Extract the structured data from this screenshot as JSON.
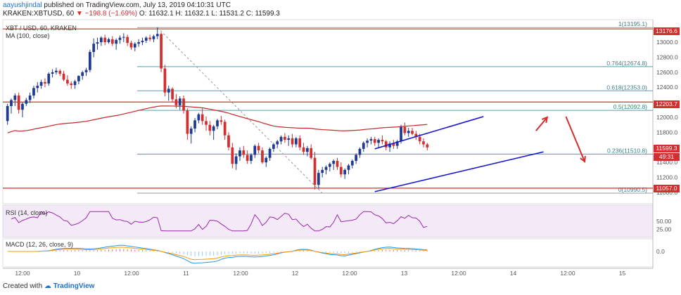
{
  "header": {
    "author": "aayushjindal",
    "published": "published on TradingView.com, July 13, 2019 04:10:31 UTC",
    "symbol": "KRAKEN:XBTUSD, 60",
    "change": "▼ −198.8 (−1.69%)",
    "ohlc": "O: 11632.1  H: 11632.1  L: 11531.2  C: 11599.3"
  },
  "legend": {
    "pair": "XBT / USD, 60, KRAKEN",
    "ma": "MA (100, close)",
    "rsi": "RSI (14, close)",
    "macd": "MACD (12, 26, close, 9)"
  },
  "footer": {
    "created": "Created with",
    "brand": "TradingView"
  },
  "colors": {
    "up": "#1f3a93",
    "down": "#d32f2f",
    "ma": "#c62828",
    "hline": "#d32f2f",
    "channel": "#1a1acc",
    "fib": "#4aa3a8",
    "rsi": "#9c27b0"
  },
  "price_axis_labels": [
    "13000.0",
    "12800.0",
    "12600.0",
    "12400.0",
    "12000.0",
    "11800.0",
    "11400.0",
    "11200.0",
    "11000.0"
  ],
  "rsi_axis_labels": [
    "50.00",
    "25.00"
  ],
  "macd_axis_labels": [
    "0.0"
  ],
  "time_axis_labels": [
    "12:00",
    "10",
    "12:00",
    "11",
    "12:00",
    "12",
    "12:00",
    "13",
    "12:00",
    "14",
    "12:00",
    "15"
  ],
  "badges": {
    "top": "13176.6",
    "mid": "12203.7",
    "last": "11599.3",
    "countdown": "49:31",
    "low": "11057.0"
  },
  "chart_data": {
    "type": "candlestick",
    "title": "XBT / USD, 60, KRAKEN",
    "ylim": [
      10850,
      13300
    ],
    "horizontal_levels": [
      13176.6,
      12203.7,
      11057.0
    ],
    "fibonacci": [
      {
        "label": "1(13195.1)",
        "value": 13195.1
      },
      {
        "label": "0.764(12674.8)",
        "value": 12674.8
      },
      {
        "label": "0.618(12353.0)",
        "value": 12353.0
      },
      {
        "label": "0.5(12092.8)",
        "value": 12092.8
      },
      {
        "label": "0.236(11510.8)",
        "value": 11510.8
      },
      {
        "label": "0(10990.5)",
        "value": 10990.5
      }
    ],
    "channel": {
      "upper": [
        {
          "t": 98,
          "price": 11580
        },
        {
          "t": 127,
          "price": 12010
        }
      ],
      "lower": [
        {
          "t": 98,
          "price": 11010
        },
        {
          "t": 143,
          "price": 11540
        }
      ]
    },
    "arrows": [
      {
        "from": {
          "t": 141,
          "price": 11820
        },
        "to": {
          "t": 144,
          "price": 12000
        }
      },
      {
        "from": {
          "t": 149,
          "price": 12010
        },
        "to": {
          "t": 154,
          "price": 11410
        }
      }
    ],
    "candles": [
      [
        11950,
        12180,
        11900,
        12150
      ],
      [
        12150,
        12250,
        12050,
        12230
      ],
      [
        12230,
        12320,
        12150,
        12290
      ],
      [
        12290,
        12330,
        12050,
        12100
      ],
      [
        12100,
        12200,
        12000,
        12180
      ],
      [
        12180,
        12260,
        12150,
        12230
      ],
      [
        12230,
        12330,
        12190,
        12290
      ],
      [
        12290,
        12420,
        12250,
        12390
      ],
      [
        12390,
        12470,
        12330,
        12420
      ],
      [
        12420,
        12500,
        12380,
        12470
      ],
      [
        12470,
        12520,
        12400,
        12450
      ],
      [
        12450,
        12600,
        12420,
        12580
      ],
      [
        12580,
        12640,
        12530,
        12600
      ],
      [
        12600,
        12660,
        12570,
        12620
      ],
      [
        12620,
        12640,
        12550,
        12580
      ],
      [
        12580,
        12620,
        12480,
        12500
      ],
      [
        12500,
        12560,
        12420,
        12450
      ],
      [
        12450,
        12480,
        12380,
        12430
      ],
      [
        12430,
        12500,
        12380,
        12480
      ],
      [
        12480,
        12560,
        12440,
        12550
      ],
      [
        12550,
        12620,
        12500,
        12600
      ],
      [
        12600,
        12660,
        12550,
        12630
      ],
      [
        12630,
        12900,
        12600,
        12870
      ],
      [
        12870,
        13050,
        12800,
        12980
      ],
      [
        12980,
        13060,
        12900,
        13000
      ],
      [
        13000,
        13080,
        12950,
        13060
      ],
      [
        13060,
        13100,
        12960,
        13000
      ],
      [
        13000,
        13060,
        12980,
        13040
      ],
      [
        13040,
        13080,
        12950,
        12980
      ],
      [
        12980,
        13050,
        12900,
        13030
      ],
      [
        13030,
        13090,
        12980,
        13060
      ],
      [
        13060,
        13120,
        13000,
        13070
      ],
      [
        13070,
        13100,
        12950,
        12990
      ],
      [
        12990,
        13020,
        12900,
        12930
      ],
      [
        12930,
        13000,
        12880,
        12980
      ],
      [
        12980,
        13040,
        12940,
        13000
      ],
      [
        13000,
        13060,
        12960,
        13020
      ],
      [
        13020,
        13080,
        12990,
        13060
      ],
      [
        13060,
        13100,
        13010,
        13040
      ],
      [
        13040,
        13100,
        13000,
        13080
      ],
      [
        13080,
        13195,
        13040,
        13110
      ],
      [
        13110,
        13130,
        12600,
        12650
      ],
      [
        12650,
        12700,
        12280,
        12330
      ],
      [
        12330,
        12420,
        12220,
        12380
      ],
      [
        12380,
        12400,
        12200,
        12240
      ],
      [
        12240,
        12310,
        12120,
        12160
      ],
      [
        12160,
        12280,
        12100,
        12250
      ],
      [
        12250,
        12290,
        12050,
        12090
      ],
      [
        12090,
        12120,
        11700,
        11780
      ],
      [
        11780,
        11880,
        11650,
        11850
      ],
      [
        11850,
        11990,
        11800,
        11960
      ],
      [
        11960,
        12060,
        11920,
        12040
      ],
      [
        12040,
        12120,
        11900,
        11950
      ],
      [
        11950,
        12010,
        11820,
        11900
      ],
      [
        11900,
        11950,
        11760,
        11820
      ],
      [
        11820,
        11900,
        11700,
        11880
      ],
      [
        11880,
        11980,
        11840,
        11960
      ],
      [
        11960,
        12020,
        11900,
        11940
      ],
      [
        11940,
        11970,
        11700,
        11760
      ],
      [
        11760,
        11800,
        11560,
        11600
      ],
      [
        11600,
        11660,
        11320,
        11380
      ],
      [
        11380,
        11520,
        11300,
        11480
      ],
      [
        11480,
        11600,
        11420,
        11560
      ],
      [
        11560,
        11620,
        11460,
        11500
      ],
      [
        11500,
        11560,
        11380,
        11420
      ],
      [
        11420,
        11520,
        11380,
        11500
      ],
      [
        11500,
        11640,
        11460,
        11620
      ],
      [
        11620,
        11660,
        11520,
        11560
      ],
      [
        11560,
        11600,
        11380,
        11400
      ],
      [
        11400,
        11480,
        11340,
        11460
      ],
      [
        11460,
        11600,
        11420,
        11580
      ],
      [
        11580,
        11660,
        11540,
        11640
      ],
      [
        11640,
        11700,
        11600,
        11680
      ],
      [
        11680,
        11760,
        11640,
        11740
      ],
      [
        11740,
        11790,
        11660,
        11700
      ],
      [
        11700,
        11760,
        11620,
        11720
      ],
      [
        11720,
        11780,
        11600,
        11640
      ],
      [
        11640,
        11740,
        11600,
        11720
      ],
      [
        11720,
        11760,
        11560,
        11600
      ],
      [
        11600,
        11660,
        11500,
        11540
      ],
      [
        11540,
        11620,
        11480,
        11590
      ],
      [
        11590,
        11640,
        11440,
        11460
      ],
      [
        11460,
        11540,
        11040,
        11100
      ],
      [
        11100,
        11300,
        11050,
        11260
      ],
      [
        11260,
        11340,
        11200,
        11300
      ],
      [
        11300,
        11360,
        11240,
        11340
      ],
      [
        11340,
        11400,
        11280,
        11380
      ],
      [
        11380,
        11440,
        11300,
        11420
      ],
      [
        11420,
        11460,
        11300,
        11340
      ],
      [
        11340,
        11400,
        11200,
        11240
      ],
      [
        11240,
        11320,
        11180,
        11300
      ],
      [
        11300,
        11380,
        11240,
        11360
      ],
      [
        11360,
        11440,
        11320,
        11420
      ],
      [
        11420,
        11520,
        11380,
        11500
      ],
      [
        11500,
        11600,
        11460,
        11580
      ],
      [
        11580,
        11680,
        11540,
        11660
      ],
      [
        11660,
        11720,
        11600,
        11690
      ],
      [
        11690,
        11740,
        11640,
        11710
      ],
      [
        11710,
        11740,
        11620,
        11660
      ],
      [
        11660,
        11720,
        11600,
        11700
      ],
      [
        11700,
        11760,
        11640,
        11680
      ],
      [
        11680,
        11700,
        11560,
        11600
      ],
      [
        11600,
        11680,
        11540,
        11650
      ],
      [
        11650,
        11700,
        11580,
        11620
      ],
      [
        11620,
        11700,
        11580,
        11680
      ],
      [
        11680,
        11900,
        11650,
        11870
      ],
      [
        11870,
        11930,
        11760,
        11790
      ],
      [
        11790,
        11860,
        11740,
        11820
      ],
      [
        11820,
        11860,
        11760,
        11780
      ],
      [
        11780,
        11820,
        11700,
        11740
      ],
      [
        11740,
        11780,
        11640,
        11680
      ],
      [
        11680,
        11720,
        11600,
        11640
      ],
      [
        11640,
        11660,
        11560,
        11599
      ]
    ]
  }
}
